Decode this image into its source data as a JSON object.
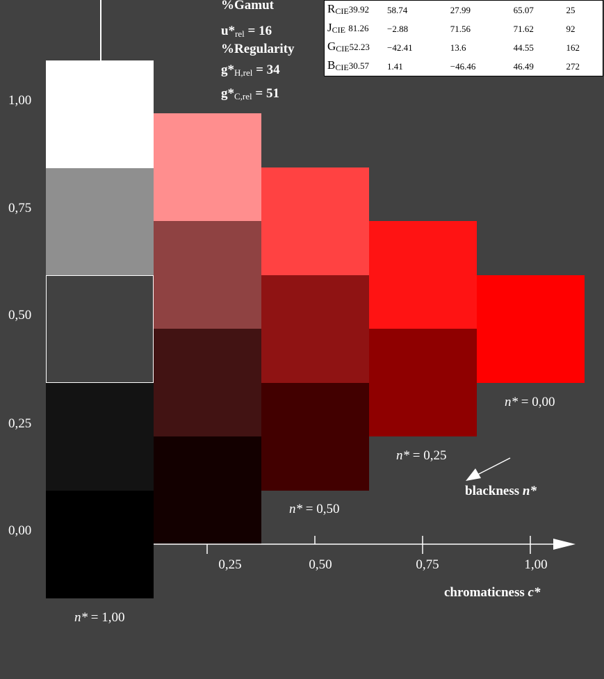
{
  "colors": {
    "background": "#414141",
    "column_0": [
      "#ffffff",
      "#8f8f8f",
      "#414141",
      "#131313",
      "#000000"
    ],
    "column_1": [
      "#ff8e8e",
      "#8f4242",
      "#421313",
      "#130000"
    ],
    "column_2": [
      "#ff4242",
      "#8f1313",
      "#420000"
    ],
    "column_3": [
      "#ff1313",
      "#8f0000"
    ],
    "column_4": [
      "#ff0000"
    ]
  },
  "y_axis": {
    "ticks": [
      "1,00",
      "0,75",
      "0,50",
      "0,25",
      "0,00"
    ]
  },
  "x_axis": {
    "ticks": [
      "0,25",
      "0,50",
      "0,75",
      "1,00"
    ],
    "label_text": "chromaticness ",
    "label_var": "c*"
  },
  "blackness_arrow": {
    "label_text": "blackness ",
    "label_var": "n*"
  },
  "n_labels": [
    {
      "var": "n*",
      "value": "= 1,00"
    },
    {
      "var": "n*",
      "value": "= 0,50"
    },
    {
      "var": "n*",
      "value": "= 0,25"
    },
    {
      "var": "n*",
      "value": "= 0,00"
    }
  ],
  "metrics": {
    "gamut": "%Gamut",
    "u_base": "u*",
    "u_sub": "rel",
    "u_value": "= 16",
    "regularity": "%Regularity",
    "gh_base": "g*",
    "gh_sub": "H,rel",
    "gh_value": "= 34",
    "gc_base": "g*",
    "gc_sub": "C,rel",
    "gc_value": "= 51"
  },
  "cie_table": [
    {
      "letter": "R",
      "sub": "CIE",
      "v1": "39.92",
      "v2": "58.74",
      "v3": "27.99",
      "v4": "65.07",
      "v5": "25"
    },
    {
      "letter": "J",
      "sub": "CIE",
      "v1": "81.26",
      "v2": "−2.88",
      "v3": "71.56",
      "v4": "71.62",
      "v5": "92"
    },
    {
      "letter": "G",
      "sub": "CIE",
      "v1": "52.23",
      "v2": "−42.41",
      "v3": "13.6",
      "v4": "44.55",
      "v5": "162"
    },
    {
      "letter": "B",
      "sub": "CIE",
      "v1": "30.57",
      "v2": "1.41",
      "v3": "−46.46",
      "v4": "46.49",
      "v5": "272"
    }
  ]
}
